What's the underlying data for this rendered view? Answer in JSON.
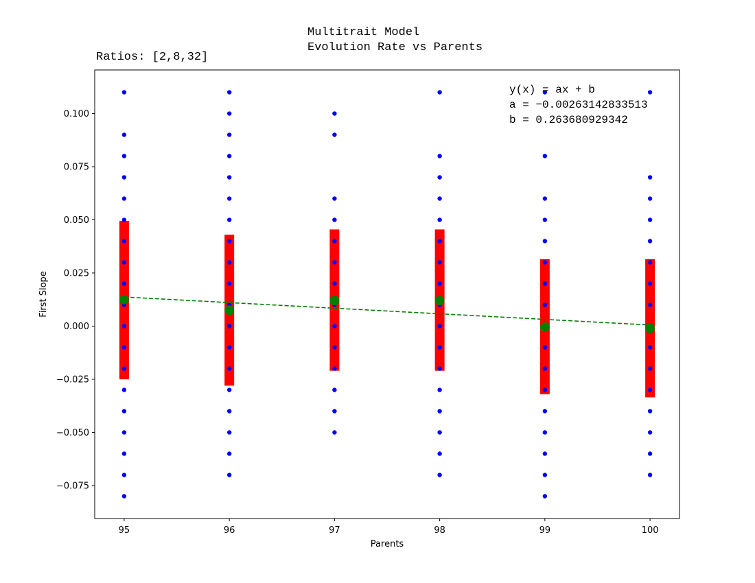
{
  "chart_data": {
    "type": "scatter",
    "title_line1": "Multitrait Model",
    "title_line2": "Evolution Rate vs Parents",
    "subtitle": "Ratios: [2,8,32]",
    "xlabel": "Parents",
    "ylabel": "First Slope",
    "xlim": [
      94.72,
      100.28
    ],
    "ylim": [
      -0.0905,
      0.1205
    ],
    "x_ticks": [
      "95",
      "96",
      "97",
      "98",
      "99",
      "100"
    ],
    "y_ticks": [
      "−0.075",
      "−0.050",
      "−0.025",
      "0.000",
      "0.025",
      "0.050",
      "0.075",
      "0.100"
    ],
    "grid": false,
    "fit_annotation": {
      "line1": "y(x) = ax + b",
      "line2": "a = −0.00263142833513",
      "line3": "b = 0.263680929342"
    },
    "fit": {
      "a": -0.00263142833513,
      "b": 0.263680929342,
      "x_range": [
        95,
        100
      ]
    },
    "points": [
      {
        "x": 95,
        "values": [
          0.11,
          0.09,
          0.08,
          0.07,
          0.06,
          0.05,
          0.04,
          0.03,
          0.02,
          0.01,
          0.0,
          -0.01,
          -0.02,
          -0.03,
          -0.04,
          -0.05,
          -0.06,
          -0.07,
          -0.08
        ]
      },
      {
        "x": 96,
        "values": [
          0.11,
          0.1,
          0.09,
          0.08,
          0.07,
          0.06,
          0.05,
          0.04,
          0.03,
          0.02,
          0.01,
          0.0,
          -0.01,
          -0.02,
          -0.03,
          -0.04,
          -0.05,
          -0.06,
          -0.07
        ]
      },
      {
        "x": 97,
        "values": [
          0.1,
          0.09,
          0.06,
          0.05,
          0.04,
          0.03,
          0.02,
          0.01,
          0.0,
          -0.01,
          -0.02,
          -0.03,
          -0.04,
          -0.05
        ]
      },
      {
        "x": 98,
        "values": [
          0.11,
          0.08,
          0.07,
          0.06,
          0.05,
          0.04,
          0.03,
          0.02,
          0.01,
          0.0,
          -0.01,
          -0.02,
          -0.03,
          -0.04,
          -0.05,
          -0.06,
          -0.07
        ]
      },
      {
        "x": 99,
        "values": [
          0.11,
          0.08,
          0.06,
          0.05,
          0.04,
          0.03,
          0.02,
          0.01,
          0.0,
          -0.01,
          -0.02,
          -0.03,
          -0.04,
          -0.05,
          -0.06,
          -0.07,
          -0.08
        ]
      },
      {
        "x": 100,
        "values": [
          0.11,
          0.07,
          0.06,
          0.05,
          0.04,
          0.03,
          0.02,
          0.01,
          0.0,
          -0.01,
          -0.02,
          -0.03,
          -0.04,
          -0.05,
          -0.06,
          -0.07
        ]
      }
    ],
    "means": [
      {
        "x": 95,
        "mean": 0.0125,
        "low": -0.025,
        "high": 0.0495
      },
      {
        "x": 96,
        "mean": 0.0075,
        "low": -0.028,
        "high": 0.043
      },
      {
        "x": 97,
        "mean": 0.012,
        "low": -0.021,
        "high": 0.0455
      },
      {
        "x": 98,
        "mean": 0.012,
        "low": -0.021,
        "high": 0.0455
      },
      {
        "x": 99,
        "mean": -0.0005,
        "low": -0.032,
        "high": 0.0315
      },
      {
        "x": 100,
        "mean": -0.001,
        "low": -0.0335,
        "high": 0.0315
      }
    ],
    "colors": {
      "points": "#0000ff",
      "error_bars": "#ff0000",
      "means": "#008000",
      "fit_line": "#008000",
      "axes": "#000000"
    }
  }
}
